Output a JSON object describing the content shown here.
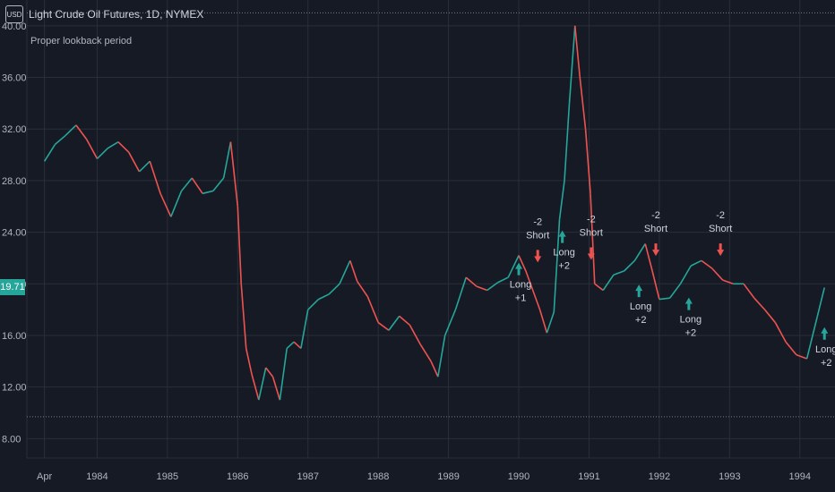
{
  "header": {
    "currency_badge": "USD",
    "title": "Light Crude Oil Futures, 1D, NYMEX"
  },
  "subtitle": "Proper lookback period",
  "last_price_badge": "19.71",
  "colors": {
    "background": "#161a25",
    "grid": "#2a2e39",
    "axis_text": "#b2b5be",
    "up": "#26a69a",
    "down": "#ef5350",
    "dotted_line": "#787b86"
  },
  "chart_data": {
    "type": "line",
    "title": "Light Crude Oil Futures, 1D, NYMEX",
    "y_ticks": [
      "8.00",
      "12.00",
      "16.00",
      "20.00",
      "24.00",
      "28.00",
      "32.00",
      "36.00",
      "40.00"
    ],
    "ylim": [
      6.5,
      42
    ],
    "x_ticks": [
      "Apr",
      "1984",
      "1985",
      "1986",
      "1987",
      "1988",
      "1989",
      "1990",
      "1991",
      "1992",
      "1993",
      "1994"
    ],
    "xlim": [
      1983.0,
      1994.5
    ],
    "reference_lines": [
      41.0,
      9.7
    ],
    "series": [
      {
        "values": [
          [
            1983.25,
            29.5
          ],
          [
            1983.4,
            30.8
          ],
          [
            1983.55,
            31.5
          ],
          [
            1983.7,
            32.3
          ],
          [
            1983.85,
            31.2
          ],
          [
            1984.0,
            29.7
          ],
          [
            1984.15,
            30.5
          ],
          [
            1984.3,
            31.0
          ],
          [
            1984.45,
            30.2
          ],
          [
            1984.6,
            28.7
          ],
          [
            1984.75,
            29.5
          ],
          [
            1984.9,
            27.0
          ],
          [
            1985.05,
            25.2
          ],
          [
            1985.2,
            27.2
          ],
          [
            1985.35,
            28.2
          ],
          [
            1985.5,
            27.0
          ],
          [
            1985.65,
            27.2
          ],
          [
            1985.8,
            28.2
          ],
          [
            1985.9,
            31.0
          ],
          [
            1986.0,
            26.0
          ],
          [
            1986.05,
            20.0
          ],
          [
            1986.12,
            15.0
          ],
          [
            1986.2,
            13.0
          ],
          [
            1986.3,
            11.0
          ],
          [
            1986.4,
            13.5
          ],
          [
            1986.5,
            12.8
          ],
          [
            1986.6,
            11.0
          ],
          [
            1986.7,
            15.0
          ],
          [
            1986.8,
            15.5
          ],
          [
            1986.9,
            15.0
          ],
          [
            1987.0,
            18.0
          ],
          [
            1987.15,
            18.8
          ],
          [
            1987.3,
            19.2
          ],
          [
            1987.45,
            20.0
          ],
          [
            1987.6,
            21.8
          ],
          [
            1987.7,
            20.2
          ],
          [
            1987.85,
            19.0
          ],
          [
            1988.0,
            17.0
          ],
          [
            1988.15,
            16.4
          ],
          [
            1988.3,
            17.5
          ],
          [
            1988.45,
            16.8
          ],
          [
            1988.6,
            15.3
          ],
          [
            1988.75,
            14.0
          ],
          [
            1988.85,
            12.8
          ],
          [
            1988.95,
            16.0
          ],
          [
            1989.1,
            18.0
          ],
          [
            1989.25,
            20.5
          ],
          [
            1989.4,
            19.8
          ],
          [
            1989.55,
            19.5
          ],
          [
            1989.7,
            20.1
          ],
          [
            1989.85,
            20.5
          ],
          [
            1990.0,
            22.2
          ],
          [
            1990.1,
            21.0
          ],
          [
            1990.2,
            19.5
          ],
          [
            1990.3,
            18.0
          ],
          [
            1990.4,
            16.2
          ],
          [
            1990.5,
            17.8
          ],
          [
            1990.58,
            25.0
          ],
          [
            1990.65,
            28.0
          ],
          [
            1990.72,
            34.0
          ],
          [
            1990.8,
            40.0
          ],
          [
            1990.87,
            36.0
          ],
          [
            1990.95,
            32.0
          ],
          [
            1991.02,
            27.0
          ],
          [
            1991.08,
            20.0
          ],
          [
            1991.2,
            19.5
          ],
          [
            1991.35,
            20.7
          ],
          [
            1991.5,
            21.0
          ],
          [
            1991.65,
            21.8
          ],
          [
            1991.8,
            23.1
          ],
          [
            1991.9,
            21.0
          ],
          [
            1992.0,
            18.8
          ],
          [
            1992.15,
            18.9
          ],
          [
            1992.3,
            20.0
          ],
          [
            1992.45,
            21.4
          ],
          [
            1992.6,
            21.8
          ],
          [
            1992.75,
            21.2
          ],
          [
            1992.9,
            20.3
          ],
          [
            1993.05,
            20.0
          ],
          [
            1993.2,
            20.0
          ],
          [
            1993.35,
            18.9
          ],
          [
            1993.5,
            18.0
          ],
          [
            1993.65,
            17.0
          ],
          [
            1993.8,
            15.5
          ],
          [
            1993.95,
            14.5
          ],
          [
            1994.1,
            14.2
          ],
          [
            1994.25,
            17.5
          ],
          [
            1994.35,
            19.71
          ]
        ]
      }
    ],
    "annotations": [
      {
        "x": 1990.0,
        "y": 21.5,
        "dir": "up",
        "lines": [
          "Long",
          "+1"
        ]
      },
      {
        "x": 1990.27,
        "y": 21.8,
        "dir": "down",
        "lines": [
          "-2",
          "Short"
        ]
      },
      {
        "x": 1990.62,
        "y": 24.0,
        "dir": "up",
        "lines": [
          "Long",
          "+2"
        ]
      },
      {
        "x": 1991.03,
        "y": 22.0,
        "dir": "down",
        "lines": [
          "-2",
          "Short"
        ]
      },
      {
        "x": 1991.71,
        "y": 19.8,
        "dir": "up",
        "lines": [
          "Long",
          "+2"
        ]
      },
      {
        "x": 1991.95,
        "y": 22.3,
        "dir": "down",
        "lines": [
          "-2",
          "Short"
        ]
      },
      {
        "x": 1992.42,
        "y": 18.8,
        "dir": "up",
        "lines": [
          "Long",
          "+2"
        ]
      },
      {
        "x": 1992.87,
        "y": 22.3,
        "dir": "down",
        "lines": [
          "-2",
          "Short"
        ]
      },
      {
        "x": 1994.35,
        "y": 16.5,
        "dir": "up",
        "lines": [
          "Long",
          "+2"
        ]
      }
    ]
  }
}
